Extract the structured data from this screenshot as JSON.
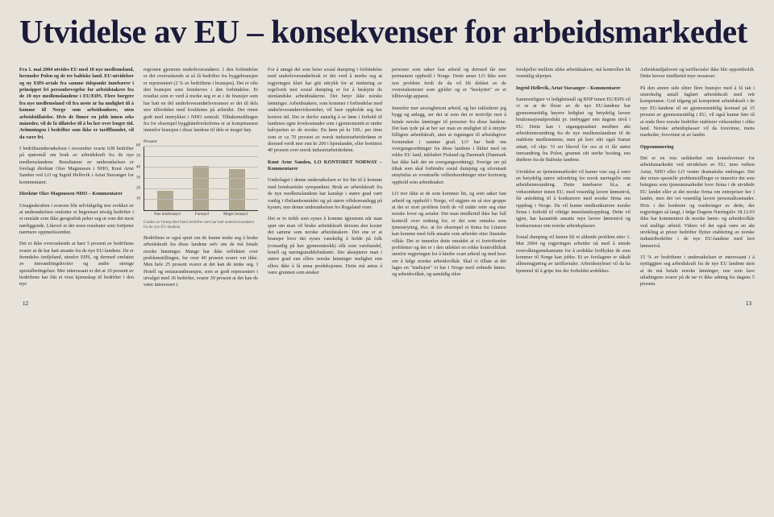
{
  "title": "Utvidelse av EU – konsekvenser for arbeidsmarkedet",
  "page_left": "12",
  "page_right": "13",
  "columns": [
    {
      "paragraphs": [
        {
          "cls": "bold-lead",
          "text": "Fra 1. mai 2004 utvides EU med 10 nye medlemsland, herunder Polen og de tre baltiske land. EU-utvidelser og ny EØS-avtale fra samme tidspunkt innebærer i prinsippet fri personbevegelse for arbeidstakere fra de 10 nye medlemslandene i EU/EØS. Flere borgere fra nye medlemsland vil fra neste år ha mulighet til å komme til Norge som arbeidssøkere, uten arbeidstillatelse. Hvis de finner en jobb innen seks måneder, vil de få tillatelse til å bo her over lengre tid. Avlønningen i bedrifter som ikke er tariffbundet, vil da være fri."
        },
        {
          "text": "I bedriftsundersøkelsen i november svarte 638 bedrifter på spørsmål om bruk av arbeidskraft fra de nye medlemslandene. Resultatene av undersøkelsen er forelagt direktør Olav Magnussen i NHO, Knut Arne Sanden ved LO og Ingrid Hellevik i Aetat Stavanger for kommentarer."
        },
        {
          "cls": "section-head",
          "text": "Direktør Olav Magnussen NHO – Kommentarer"
        },
        {
          "text": "Utsagnskraften i svarene blir selvfølgelig noe svekket av at undersøkelsen omfatter et begrenset utvalg bedrifter i et område som ikke geografisk peker seg ut som det mest nærliggende. Likevel er det noen resultater som fortjener nærmere oppmerksomhet."
        },
        {
          "text": "Det er ikke overraskende at bare 5 prosent av bedriftene svarer at de har hatt ansatte fra de nye EU-landene. De er fremdeles tredjeland, utenfor EØS, og dermed omfattet av innvandringskvoter og andre strenge spesialbetingelser. Mer interessant er det at 10 prosent av bedriftene har fått et visst kjennskap til bedrifter i den nye"
        }
      ]
    },
    {
      "paragraphs": [
        {
          "text": "regionen gjennom underleverandører. I den forbindelse er det overraskende at så få bedrifter fra byggebransjen er representert (2 % av bedriftene i bransjen). Det er ofte den bransjen som fremheves i den forbindelse. Et resultat som er verd å merke seg er at i de bransjer som har hatt en del underleverandørleveranser er det til dels stor tilfredshet med kvaliteten på arbeidet. Det rimer godt med inntrykket i NHO sentralt. Tilbakemeldingen fra for eksempel bygghåndverksfirma er at kompetansen innenfor bransjen i disse landene til dels er meget høy."
        }
      ],
      "chart": {
        "type": "bar",
        "ylabel": "Prosent",
        "ylim": [
          0,
          60
        ],
        "ytick_step": 10,
        "categories": [
          "Noe misfornøyd",
          "Fornøyd",
          "Meget fornøyd"
        ],
        "values": [
          18,
          42,
          39
        ],
        "bar_color": "#b0a890",
        "grid_color": "#bbbbbb",
        "caption": "Graden av fornøydhet blant bedrifter som har hatt underleverandører fra de nye EU-landene."
      },
      "paragraphs_after": [
        {
          "text": "Bedriftene er også spurt om de kunne tenke seg å bruke arbeidskraft fra disse landene selv om de må betale norske lønninger. Mange har ikke reflektert over problemstillingen, for over 40 prosent svarer vet ikke. Men hele 25 prosent svarer at det kan de tenke seg. I Hotell og restaurantbransjen, som er godt representert i utvalget med 36 bedrifter, svarer 39 prosent at det kan de være interessert i."
        }
      ]
    },
    {
      "paragraphs": [
        {
          "text": "For å unngå det som heter sosial dumping i forbindelse med underleverandørbruk er det verd å merke seg at regjeringen klart har gitt uttrykk for at innføring av regelverk mot sosial dumping er for å beskytte de utenlandske arbeidstakerne. Det betyr ikke norske lønninger. Arbeidstakere, som kommer i forbindelse med underleverandørvirksomhet, vil bare oppholde seg her kortere tid. Det er derfor naturlig å se lønn i forhold til landenes egne levekostnader som i gjennomsnitt er under halvparten av de norske. En lønn på kr 100,- per time som er ca 70 prosent av norsk industriarbeiderlønn er dermed verdt mer enn kr 200 i hjemlandet, eller bortimot 40 prosent over norsk industriarbeiderlønn."
        },
        {
          "cls": "section-head",
          "text": "Knut Arne Sanden, LO KONTORET NORWAY – Kommentarer"
        },
        {
          "text": "Underlaget i denne undersøkelsen er for lite til å komme med bombastiske synspunkter. Bruk av arbeidskraft fra de nye medlemslandene har kanskje i større grad vært vanlig i Østlandsområdet og på større offshoreanlegg på kysten, enn denne undersøkelsen fra Rogaland viser."
        },
        {
          "text": "Det er to trekk som synes å komme igjennom når man spør om man vil bruke arbeidskraft dersom den koster det samme som norske arbeidstakere. Det ene er at bransjer hvor det synes vanskelig å holde på folk (romanlig på hav gjennomtrekk) slik som varehandel, hotell og næringsmiddelindustri. Der aksepterer man i større grad enn ellers norske lønninger mulighet enn ellers ikke å få unna produksjonen. Dette må antas å være grunnen som ønsker"
        }
      ]
    },
    {
      "paragraphs": [
        {
          "text": "personer som søker fast arbeid og dermed får mer permanent opphold i Norge. Dette anser LO ikke som noe problem fordi de da vil bli dekket av de overenskomster som gjelder og er \"beskyttet\" av et tillitsvalgt apparat."
        },
        {
          "text": "Innenfor mer sesongbetont arbeid, og her inkluderer jeg bygg og anlegg, ser det ut som det er motvilje mot å betale norske lønninger til personer fra disse landene. Det kan tyde på at her ser man en mulighet til å utnytte billigere arbeidskraft, uten at regningen til arbeidsgiver forminsket i samme grad. LO har bedt om overgangsordninger fra disse landene i likhet med en rekke EU land, inkludert Finland og Danmark (Danmark har ikke kalt det en overgangsordning). Sverige ser på tiltak som skal forhindre sosial dumping og uforutsatt utnyttelse av eventuelle velferdsordninger etter kortvarig opphold som arbeidstaker."
        },
        {
          "text": "LO tror ikke at de som kommer hit, og som søker fast arbeid og opphold i Norge, vil utgjøre en så stor gruppe at det er stort problem fordi de vil måtte rette seg etter norske lover og avtaler. Det man imidlertid ikke har full kontroll over ordning for, er det som omtales som tjenesteyting, dvs. at for eksempel et firma fra Litauen kan komme med folk ansatte som arbeider etter litauiske vilkår. Det er innenfor dette området at vi fortviftenfor problemer og det er i den utlektet en rekke kontrolltiltak utenfor regjeringen for å hindre svart arbeid og med krav om å følge norske arbeidsvilkår. Skal vi tillate at det lages en \"tradisjon\" vi har i Norge med ordnede lønns- og arbeidsvilkår, og samtidig sikre"
        }
      ]
    },
    {
      "paragraphs": [
        {
          "text": "forskjeller mellom ulike arbeidstakere, må kontrollen bli vesentlig skjerpet."
        },
        {
          "cls": "section-head",
          "text": "Ingrid Hellevik, Aetat Stavanger – Kommentarer"
        },
        {
          "text": "Sammenligner vi ledighetstall og BNP innen EU/EØS vil vi se at de fleste av de nye EU-landene har gjennomsnittlig høyere ledighet og betydelig lavere bruttonasjonalprodukt pr. innbygger enn dagens nivå i EU. Dette kan i utgangspunktet medføre økt arbeidsinnvandring fra de nye medlemslandene til de etablerte medlemmene, men på kort sikt også framst antatt, vil skje. Vi ser likevel for oss at vi får størst innvandring fra Polen, grunnet sitt sterke bosting, ens drøftere fra de Baltiske landene."
        },
        {
          "text": "Utvidelse av tjenestemarkedet vil kunne vise seg å være en betydelig større utfordring for norsk næringsliv enn arbeidsinnvandring. Dette innebærer bl.a. at virksomheter innen EU, med vesentlig lavere lønnsnivå, får anledning til å konkurrere med norske firma om oppdrag i Norge. Da vil kunne medkonkurrere norske firma i forhold til viktige innenlandsoppdrag. Dette vil igjen, har karantide ansatte mye lavere lønnsnivå og konkurranser enn norske arbeidsplasser."
        },
        {
          "text": "Sosial dumping vil kunne bli et aldende problem etter 1. Mai 2004 og regjeringen arbeider nå med å utrede overvåkingsmekanisme for å avdekke hvilkykte de som kommer til Norge kan jobbe. Et av forslagene er såkalt allmenngjøring av tariffavtaler. Arbeidsstylmet vil da ha hjemmel til å gripe inn der forholdet avdekkes."
        }
      ]
    },
    {
      "paragraphs": [
        {
          "text": "Arbeidsmiljøloven og tariffavtaler ikke blir opprettholdt. Dette krever imidlertid mye ressurser."
        },
        {
          "text": "På den annen side sliter flere bransjer med å få tak i utstrekelig antall faglært arbeidskraft med rett kompetanse. God tilgang på kompetent arbeidskraft i de nye EU-landene til en gjennomsnittlig kostnad på 15 prosent av gjennomsnittlig i EU, vil også kunne føre til at enda flere norske bedrifter etablerer virksomhet i slike land. Norske arbeidsplasser vil da forsvinne, mens markeder, forsvinne ut av landet."
        },
        {
          "cls": "section-head",
          "text": "Oppsummering"
        },
        {
          "text": "Det er en viss usikkerhet om konsekvenser for arbeidsmarkedet ved utvidelsen av EU, men verken Aetat, NHO eller LO venter dramatiske endringer. Det der reises spesielle problemstillinger er innenfor det som betegnes som tjenestemarkedet hvor firma i de utvidede EU landet eller at det norske firma om entrepriser her i landet, men det vet vesentlig lavere personalkostnader. Hvis i det konkrete og vurderinger av dette, der regjeringen så langt, i følge Dagens Næringsliv 18.12.03 ikke har kommentert de norske lønns- og arbeidsvilkår ved utallige arbeid. Videre vil det også være en akt utvikling at prizer bedrifter flytter etablering av norske industribedrifter i de nye EU-landene med lavt lønnsnivå."
        },
        {
          "text": "15 % av bedriftene i undersøkelsen er interessant i å nyttiggjøre seg arbeidskraft fra de nye EU landene uten at de må betale norske lønninger, noe som lave utladingene svarer på de tar vi ikke adning fra dagens 5 prosent."
        }
      ]
    }
  ]
}
